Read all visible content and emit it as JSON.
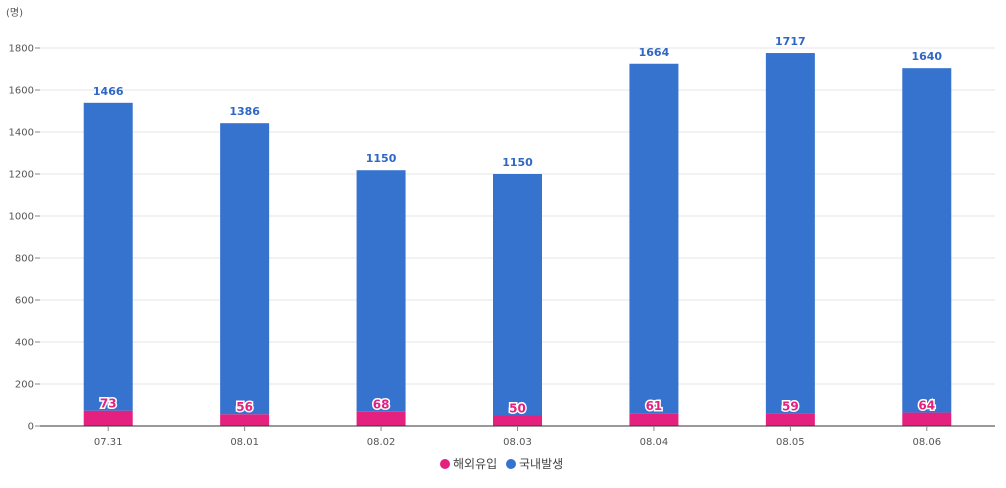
{
  "chart_data": {
    "type": "bar",
    "stacked": true,
    "unit": "(명)",
    "categories": [
      "07.31",
      "08.01",
      "08.02",
      "08.03",
      "08.04",
      "08.05",
      "08.06"
    ],
    "series": [
      {
        "name": "해외유입",
        "color": "#e4217f",
        "values": [
          73,
          56,
          68,
          50,
          61,
          59,
          64
        ]
      },
      {
        "name": "국내발생",
        "color": "#3673cf",
        "values": [
          1466,
          1386,
          1150,
          1150,
          1664,
          1717,
          1640
        ]
      }
    ],
    "ylim": [
      0,
      1800
    ],
    "yticks": [
      0,
      200,
      400,
      600,
      800,
      1000,
      1200,
      1400,
      1600,
      1800
    ],
    "grid": true,
    "legend_position": "bottom-center",
    "label_color_domestic": "#2f67c4"
  }
}
